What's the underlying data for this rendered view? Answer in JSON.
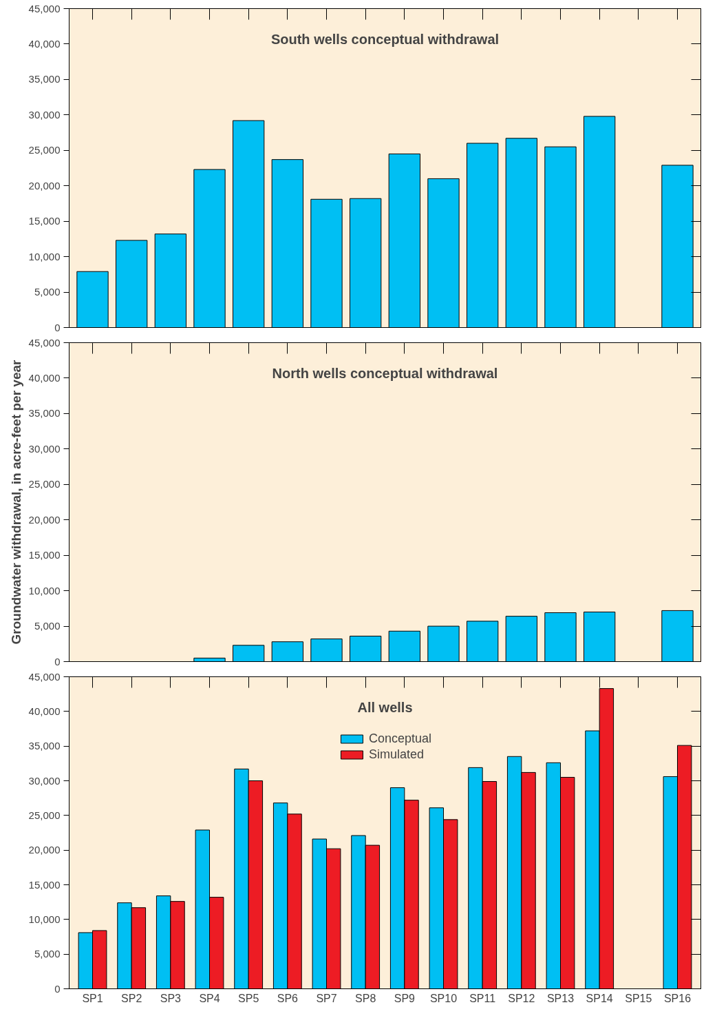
{
  "chart_data": [
    {
      "type": "bar",
      "title": "South wells conceptual withdrawal",
      "categories": [
        null,
        null,
        null,
        null,
        null,
        null,
        null,
        null,
        null,
        null,
        null,
        null,
        null,
        null,
        null,
        null
      ],
      "series": [
        {
          "color": "#00bff3",
          "values": [
            7900,
            12300,
            13200,
            22300,
            29200,
            23700,
            18100,
            18200,
            24500,
            21000,
            26000,
            26700,
            25500,
            29800,
            null,
            22900
          ]
        }
      ],
      "ylim": [
        0,
        45000
      ],
      "yticks": [
        0,
        {
          "value": 5000,
          "label": "5,000"
        },
        {
          "value": 10000,
          "label": "10,000"
        },
        {
          "value": 15000,
          "label": "15,000"
        },
        {
          "value": 20000,
          "label": "20,000"
        },
        {
          "value": 25000,
          "label": "25,000"
        },
        {
          "value": 30000,
          "label": "30,000"
        },
        {
          "value": 35000,
          "label": "35,000"
        },
        {
          "value": 40000,
          "label": "40,000"
        },
        {
          "value": 45000,
          "label": "45,000"
        }
      ],
      "tick_labels": "y"
    },
    {
      "type": "bar",
      "title": "North wells conceptual withdrawal",
      "ylabel": "Groundwater withdrawal, in acre-feet per year",
      "categories": [
        null,
        null,
        null,
        null,
        null,
        null,
        null,
        null,
        null,
        null,
        null,
        null,
        null,
        null,
        null,
        null
      ],
      "series": [
        {
          "color": "#00bff3",
          "values": [
            null,
            null,
            null,
            500,
            2300,
            2800,
            3200,
            3600,
            4300,
            5000,
            5700,
            6400,
            6900,
            7000,
            null,
            7200
          ]
        }
      ],
      "ylim": [
        0,
        45000
      ],
      "yticks": [
        0,
        {
          "value": 5000,
          "label": "5,000"
        },
        {
          "value": 10000,
          "label": "10,000"
        },
        {
          "value": 15000,
          "label": "15,000"
        },
        {
          "value": 20000,
          "label": "20,000"
        },
        {
          "value": 25000,
          "label": "25,000"
        },
        {
          "value": 30000,
          "label": "30,000"
        },
        {
          "value": 35000,
          "label": "35,000"
        },
        {
          "value": 40000,
          "label": "40,000"
        },
        {
          "value": 45000,
          "label": "45,000"
        }
      ],
      "tick_labels": "y"
    },
    {
      "type": "bar",
      "title": "All wells",
      "categories": [
        "SP1",
        "SP2",
        "SP3",
        "SP4",
        "SP5",
        "SP6",
        "SP7",
        "SP8",
        "SP9",
        "SP10",
        "SP11",
        "SP12",
        "SP13",
        "SP14",
        "SP15",
        "SP16"
      ],
      "series": [
        {
          "name": "Conceptual",
          "color": "#00bff3",
          "values": [
            8100,
            12400,
            13400,
            22900,
            31700,
            26800,
            21600,
            22100,
            29000,
            26100,
            31900,
            33500,
            32600,
            37200,
            null,
            30600
          ]
        },
        {
          "name": "Simulated",
          "color": "#ed1c24",
          "values": [
            8400,
            11700,
            12600,
            13200,
            30000,
            25200,
            20200,
            20700,
            27200,
            24400,
            29900,
            31200,
            30500,
            43300,
            null,
            35100
          ]
        }
      ],
      "ylim": [
        0,
        45000
      ],
      "yticks": [
        0,
        {
          "value": 5000,
          "label": "5,000"
        },
        {
          "value": 10000,
          "label": "10,000"
        },
        {
          "value": 15000,
          "label": "15,000"
        },
        {
          "value": 20000,
          "label": "20,000"
        },
        {
          "value": 25000,
          "label": "25,000"
        },
        {
          "value": 30000,
          "label": "30,000"
        },
        {
          "value": 35000,
          "label": "35,000"
        },
        {
          "value": 40000,
          "label": "40,000"
        },
        {
          "value": 45000,
          "label": "45,000"
        }
      ],
      "legend": "top"
    }
  ]
}
